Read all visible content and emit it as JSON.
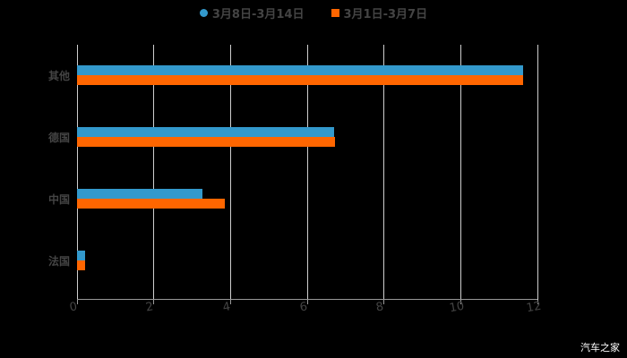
{
  "chart_data": {
    "type": "bar",
    "orientation": "horizontal",
    "title": "",
    "categories": [
      "其他",
      "德国",
      "中国",
      "法国"
    ],
    "series": [
      {
        "name": "3月8日-3月14日",
        "color": "#3399CC",
        "values": [
          11.62,
          6.7,
          3.27,
          0.21
        ]
      },
      {
        "name": "3月1日-3月7日",
        "color": "#FF6600",
        "values": [
          11.62,
          6.72,
          3.85,
          0.21
        ]
      }
    ],
    "xlabel": "",
    "ylabel": "",
    "xlim": [
      0,
      12
    ],
    "xticks": [
      "0",
      "2",
      "4",
      "6",
      "8",
      "10",
      "12"
    ],
    "grid": true,
    "legend_position": "top"
  },
  "legend": [
    {
      "label": "3月8日-3月14日",
      "color": "#3399CC",
      "shape": "circle"
    },
    {
      "label": "3月1日-3月7日",
      "color": "#FF6600",
      "shape": "square"
    }
  ],
  "watermark": "汽车之家"
}
